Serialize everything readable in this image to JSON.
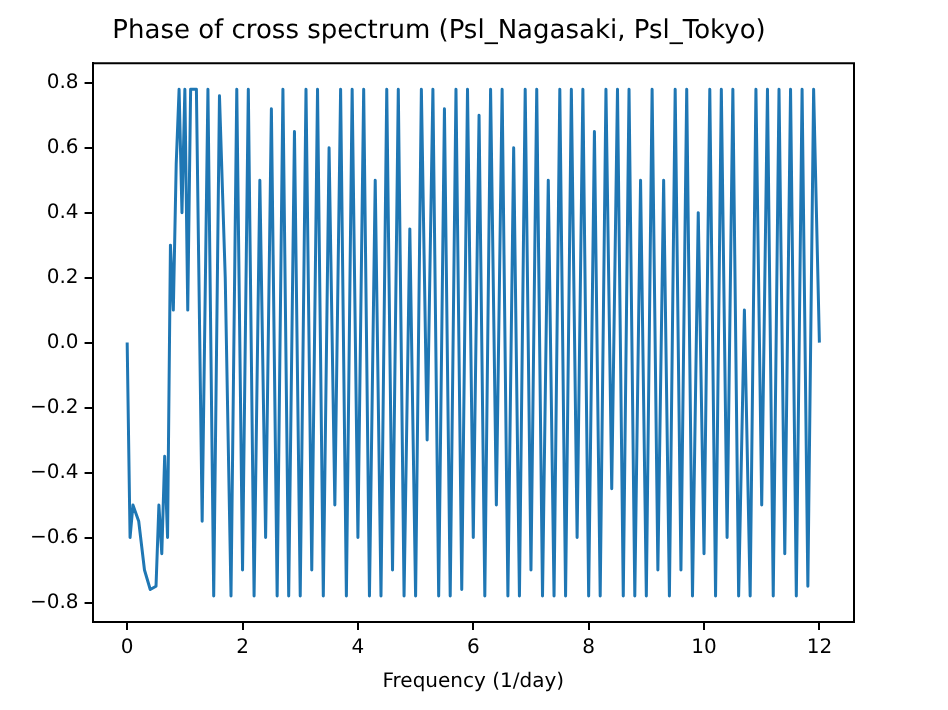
{
  "chart_data": {
    "type": "line",
    "title": "Phase of cross spectrum (Psl_Nagasaki, Psl_Tokyo)",
    "xlabel": "Frequency (1/day)",
    "xlim": [
      -0.6,
      12.6
    ],
    "ylim": [
      -0.86,
      0.86
    ],
    "xticks": [
      0,
      2,
      4,
      6,
      8,
      10,
      12
    ],
    "yticks": [
      {
        "value": -0.8,
        "label": "−0.8"
      },
      {
        "value": -0.6,
        "label": "−0.6"
      },
      {
        "value": -0.4,
        "label": "−0.4"
      },
      {
        "value": -0.2,
        "label": "−0.2"
      },
      {
        "value": 0,
        "label": "0.0"
      },
      {
        "value": 0.2,
        "label": "0.2"
      },
      {
        "value": 0.4,
        "label": "0.4"
      },
      {
        "value": 0.6,
        "label": "0.6"
      },
      {
        "value": 0.8,
        "label": "0.8"
      }
    ],
    "grid": false,
    "legend": false,
    "marker": "none",
    "line_style": "solid",
    "series": [
      {
        "color": "#1f77b4",
        "x": [
          0,
          0.05,
          0.1,
          0.2,
          0.3,
          0.4,
          0.5,
          0.55,
          0.6,
          0.65,
          0.7,
          0.75,
          0.8,
          0.85,
          0.9,
          0.95,
          1.0,
          1.05,
          1.1,
          1.2,
          1.3,
          1.4,
          1.5,
          1.6,
          1.7,
          1.8,
          1.9,
          2.0,
          2.1,
          2.2,
          2.3,
          2.4,
          2.5,
          2.6,
          2.7,
          2.8,
          2.9,
          3.0,
          3.1,
          3.2,
          3.3,
          3.4,
          3.5,
          3.6,
          3.7,
          3.8,
          3.9,
          4.0,
          4.1,
          4.2,
          4.3,
          4.4,
          4.5,
          4.6,
          4.7,
          4.8,
          4.9,
          5.0,
          5.1,
          5.2,
          5.3,
          5.4,
          5.5,
          5.6,
          5.7,
          5.8,
          5.9,
          6.0,
          6.1,
          6.2,
          6.3,
          6.4,
          6.5,
          6.6,
          6.7,
          6.8,
          6.9,
          7.0,
          7.1,
          7.2,
          7.3,
          7.4,
          7.5,
          7.6,
          7.7,
          7.8,
          7.9,
          8.0,
          8.1,
          8.2,
          8.3,
          8.4,
          8.5,
          8.6,
          8.7,
          8.8,
          8.9,
          9.0,
          9.1,
          9.2,
          9.3,
          9.4,
          9.5,
          9.6,
          9.7,
          9.8,
          9.9,
          10.0,
          10.1,
          10.2,
          10.3,
          10.4,
          10.5,
          10.6,
          10.7,
          10.8,
          10.9,
          11.0,
          11.1,
          11.2,
          11.3,
          11.4,
          11.5,
          11.6,
          11.7,
          11.8,
          11.9,
          12.0
        ],
        "values": [
          0,
          -0.6,
          -0.5,
          -0.55,
          -0.7,
          -0.76,
          -0.75,
          -0.5,
          -0.65,
          -0.35,
          -0.6,
          0.3,
          0.1,
          0.55,
          0.78,
          0.4,
          0.78,
          0.1,
          0.78,
          0.78,
          -0.55,
          0.78,
          -0.78,
          0.76,
          0.2,
          -0.78,
          0.78,
          -0.7,
          0.78,
          -0.78,
          0.5,
          -0.6,
          0.72,
          -0.78,
          0.78,
          -0.78,
          0.65,
          -0.78,
          0.78,
          -0.7,
          0.78,
          -0.78,
          0.6,
          -0.5,
          0.78,
          -0.78,
          0.78,
          -0.6,
          0.78,
          -0.78,
          0.5,
          -0.78,
          0.78,
          -0.7,
          0.78,
          -0.78,
          0.35,
          -0.78,
          0.78,
          -0.3,
          0.78,
          -0.78,
          0.72,
          -0.78,
          0.78,
          -0.76,
          0.78,
          -0.6,
          0.7,
          -0.78,
          0.78,
          -0.5,
          0.78,
          -0.78,
          0.6,
          -0.78,
          0.78,
          -0.7,
          0.78,
          -0.78,
          0.5,
          -0.78,
          0.78,
          -0.78,
          0.78,
          -0.6,
          0.78,
          -0.78,
          0.65,
          -0.78,
          0.78,
          -0.45,
          0.78,
          -0.78,
          0.78,
          -0.78,
          0.5,
          -0.78,
          0.78,
          -0.7,
          0.5,
          -0.78,
          0.78,
          -0.7,
          0.78,
          -0.78,
          0.4,
          -0.65,
          0.78,
          -0.78,
          0.78,
          -0.6,
          0.78,
          -0.78,
          0.1,
          -0.78,
          0.78,
          -0.5,
          0.78,
          -0.78,
          0.78,
          -0.65,
          0.78,
          -0.78,
          0.78,
          -0.75,
          0.78,
          0
        ]
      }
    ]
  }
}
